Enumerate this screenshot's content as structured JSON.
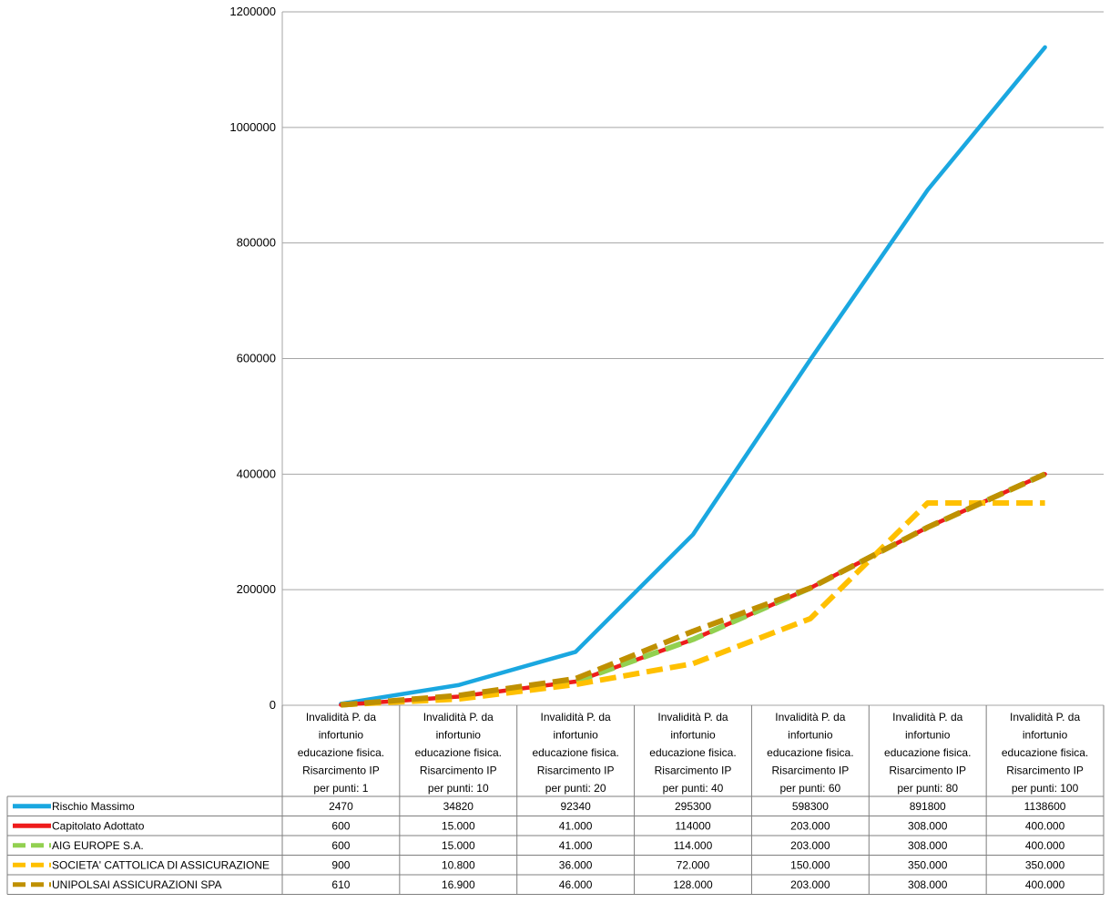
{
  "chart_data": {
    "type": "line",
    "ylim": [
      0,
      1200000
    ],
    "yticks": [
      "0",
      "200000",
      "400000",
      "600000",
      "800000",
      "1000000",
      "1200000"
    ],
    "grid": true,
    "categories": [
      [
        "Invalidità P. da",
        "infortunio",
        "educazione fisica.",
        "Risarcimento IP",
        "per punti: 1"
      ],
      [
        "Invalidità P. da",
        "infortunio",
        "educazione fisica.",
        "Risarcimento IP",
        "per punti: 10"
      ],
      [
        "Invalidità P. da",
        "infortunio",
        "educazione fisica.",
        "Risarcimento IP",
        "per punti: 20"
      ],
      [
        "Invalidità P. da",
        "infortunio",
        "educazione fisica.",
        "Risarcimento IP",
        "per punti: 40"
      ],
      [
        "Invalidità P. da",
        "infortunio",
        "educazione fisica.",
        "Risarcimento IP",
        "per punti: 60"
      ],
      [
        "Invalidità P. da",
        "infortunio",
        "educazione fisica.",
        "Risarcimento IP",
        "per punti: 80"
      ],
      [
        "Invalidità P. da",
        "infortunio",
        "educazione fisica.",
        "Risarcimento IP",
        "per punti: 100"
      ]
    ],
    "series": [
      {
        "name": "Rischio Massimo",
        "color": "#1aa7e0",
        "style": "solid",
        "values": [
          2470,
          34820,
          92340,
          295300,
          598300,
          891800,
          1138600
        ],
        "labels": [
          "2470",
          "34820",
          "92340",
          "295300",
          "598300",
          "891800",
          "1138600"
        ]
      },
      {
        "name": "Capitolato Adottato",
        "color": "#ee1c1c",
        "style": "solid",
        "values": [
          600,
          15000,
          41000,
          114000,
          203000,
          308000,
          400000
        ],
        "labels": [
          "600",
          "15.000",
          "41.000",
          "114000",
          "203.000",
          "308.000",
          "400.000"
        ]
      },
      {
        "name": "AIG EUROPE S.A.",
        "color": "#92d050",
        "style": "dashed",
        "values": [
          600,
          15000,
          41000,
          114000,
          203000,
          308000,
          400000
        ],
        "labels": [
          "600",
          "15.000",
          "41.000",
          "114.000",
          "203.000",
          "308.000",
          "400.000"
        ]
      },
      {
        "name": "SOCIETA' CATTOLICA DI ASSICURAZIONE",
        "color": "#ffc000",
        "style": "dashed",
        "values": [
          900,
          10800,
          36000,
          72000,
          150000,
          350000,
          350000
        ],
        "labels": [
          "900",
          "10.800",
          "36.000",
          "72.000",
          "150.000",
          "350.000",
          "350.000"
        ]
      },
      {
        "name": "UNIPOLSAI ASSICURAZIONI SPA",
        "color": "#bf9000",
        "style": "dashed",
        "values": [
          610,
          16900,
          46000,
          128000,
          203000,
          308000,
          400000
        ],
        "labels": [
          "610",
          "16.900",
          "46.000",
          "128.000",
          "203.000",
          "308.000",
          "400.000"
        ]
      }
    ]
  }
}
